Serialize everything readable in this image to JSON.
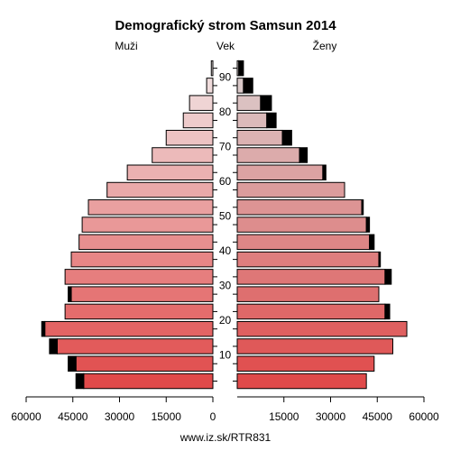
{
  "chart_data": {
    "type": "bar",
    "title": "Demografický strom Samsun 2014",
    "left_label": "Muži",
    "center_label": "Vek",
    "right_label": "Ženy",
    "footer": "www.iz.sk/RTR831",
    "age_groups": [
      "0-4",
      "5-9",
      "10-14",
      "15-19",
      "20-24",
      "25-29",
      "30-34",
      "35-39",
      "40-44",
      "45-49",
      "50-54",
      "55-59",
      "60-64",
      "65-69",
      "70-74",
      "75-79",
      "80-84",
      "85-89",
      "90+"
    ],
    "age_ticks": [
      "10",
      "20",
      "30",
      "40",
      "50",
      "60",
      "70",
      "80",
      "90"
    ],
    "x_ticks": [
      "60000",
      "45000",
      "30000",
      "15000",
      "0",
      "15000",
      "30000",
      "45000",
      "60000"
    ],
    "xlim": [
      0,
      60000
    ],
    "series": [
      {
        "name": "Muži",
        "values": [
          41500,
          44000,
          50000,
          54000,
          47500,
          45500,
          47500,
          45500,
          43000,
          42000,
          40000,
          34000,
          27500,
          19500,
          15000,
          9500,
          7500,
          2000,
          500
        ],
        "excess": [
          2500,
          2500,
          2500,
          1000,
          0,
          1000,
          0,
          0,
          0,
          0,
          0,
          0,
          0,
          0,
          0,
          0,
          0,
          0,
          0
        ]
      },
      {
        "name": "Ženy",
        "values": [
          41500,
          44000,
          50000,
          54500,
          47500,
          45500,
          47500,
          45500,
          42500,
          41500,
          40000,
          34500,
          27500,
          20000,
          14500,
          9500,
          7500,
          2000,
          500
        ],
        "excess": [
          0,
          0,
          0,
          0,
          1500,
          0,
          2000,
          500,
          1500,
          1000,
          500,
          0,
          1000,
          2500,
          3000,
          3000,
          3500,
          3000,
          1500
        ]
      }
    ]
  }
}
